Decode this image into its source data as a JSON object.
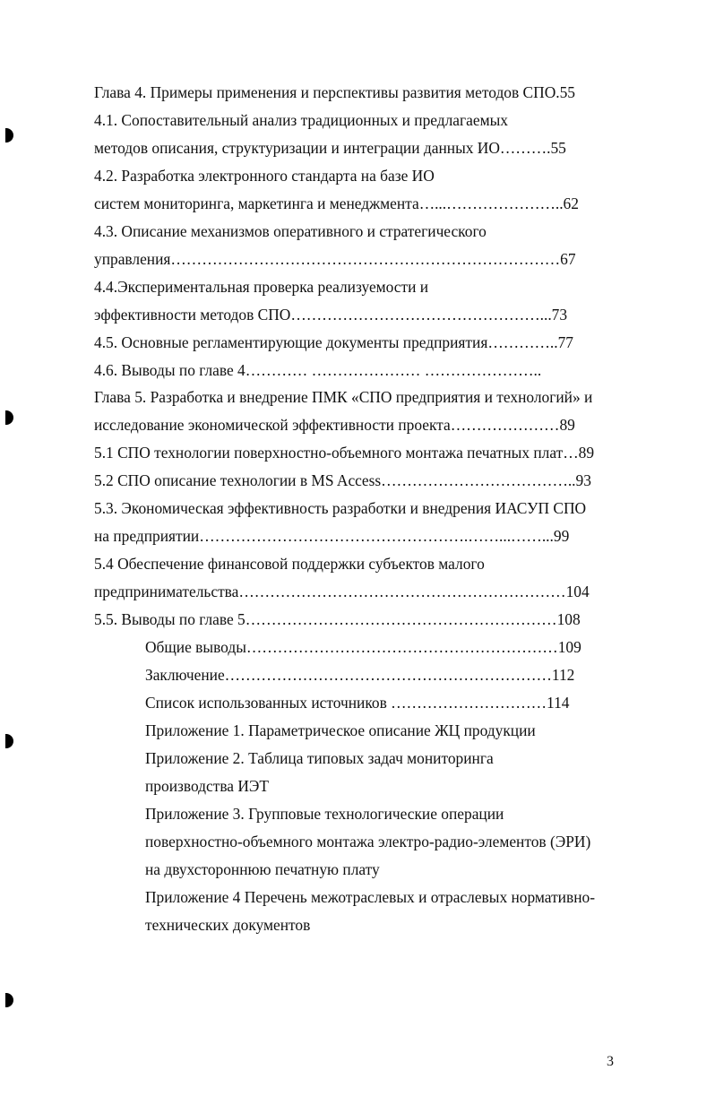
{
  "toc": [
    {
      "text": "Глава 4. Примеры применения и перспективы развития методов СПО.55",
      "indent": 0
    },
    {
      "text": "4.1. Сопоставительный анализ традиционных и предлагаемых",
      "indent": 0
    },
    {
      "text": "методов описания, структуризации и интеграции данных ИО……….55",
      "indent": 0
    },
    {
      "text": "4.2.  Разработка электронного стандарта на базе ИО",
      "indent": 0
    },
    {
      "text": "систем мониторинга, маркетинга и менеджмента…...…………………..62",
      "indent": 0
    },
    {
      "text": "4.3. Описание механизмов оперативного и стратегического",
      "indent": 0
    },
    {
      "text": "управления…………………………………………………………………67",
      "indent": 0
    },
    {
      "text": "4.4.Экспериментальная проверка реализуемости и",
      "indent": 0
    },
    {
      "text": "эффективности методов СПО…………………………………………...73",
      "indent": 0
    },
    {
      "text": "4.5. Основные регламентирующие документы предприятия…………..77",
      "indent": 0
    },
    {
      "text": "4.6. Выводы по главе 4………… ………………… …………………..",
      "indent": 0
    },
    {
      "text": "Глава 5. Разработка и внедрение ПМК «СПО предприятия и технологий» и",
      "indent": 0
    },
    {
      "text": "исследование экономической  эффективности проекта…………………89",
      "indent": 0
    },
    {
      "text": "5.1 СПО технологии поверхностно-объемного монтажа печатных плат…89",
      "indent": 0
    },
    {
      "text": "5.2 СПО описание технологии в MS Access………………………………..93",
      "indent": 0
    },
    {
      "text": "5.3. Экономическая эффективность разработки и внедрения ИАСУП СПО",
      "indent": 0
    },
    {
      "text": "на предприятии…………………………………………….……...……...99",
      "indent": 0
    },
    {
      "text": "5.4 Обеспечение финансовой поддержки субъектов малого",
      "indent": 0
    },
    {
      "text": "предпринимательства………………………………………………………104",
      "indent": 0
    },
    {
      "text": "5.5. Выводы по главе 5……………………………………………………108",
      "indent": 0
    },
    {
      "text": "Общие выводы……………………………………………………109",
      "indent": 1
    },
    {
      "text": "Заключение………………………………………………………112",
      "indent": 1
    },
    {
      "text": "Список использованных источников …………………………114",
      "indent": 1
    },
    {
      "text": "Приложение 1. Параметрическое описание ЖЦ продукции",
      "indent": 1
    },
    {
      "text": "Приложение 2. Таблица типовых задач мониторинга",
      "indent": 1
    },
    {
      "text": "производства ИЭТ",
      "indent": 1
    },
    {
      "text": "Приложение 3. Групповые технологические операции",
      "indent": 1
    },
    {
      "text": "поверхностно-объемного монтажа электро-радио-элементов (ЭРИ)",
      "indent": 1
    },
    {
      "text": "на двухстороннюю печатную плату",
      "indent": 1
    },
    {
      "text": "Приложение 4 Перечень межотраслевых и отраслевых нормативно-",
      "indent": 1
    },
    {
      "text": "технических документов",
      "indent": 1
    }
  ],
  "page_number": "3"
}
